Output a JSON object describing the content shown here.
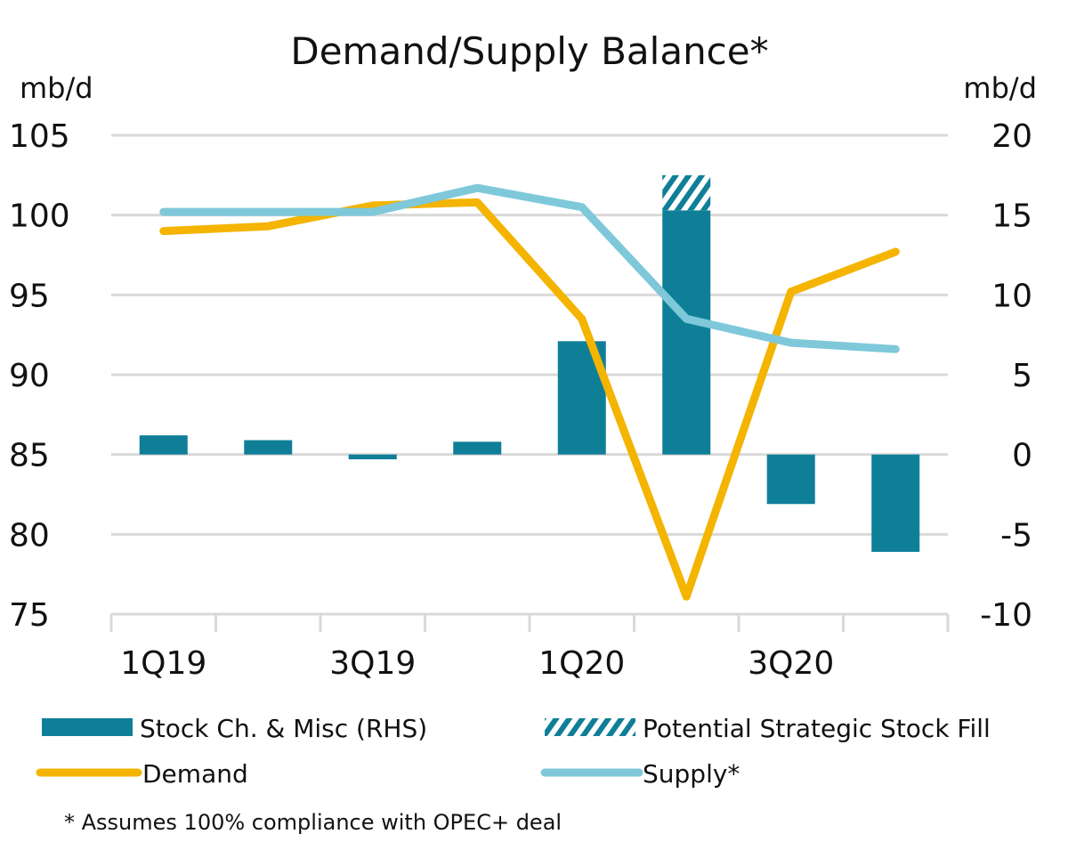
{
  "chart_data": {
    "type": "bar",
    "title": "Demand/Supply Balance*",
    "ylabel_left": "mb/d",
    "ylabel_right": "mb/d",
    "categories": [
      "1Q19",
      "",
      "3Q19",
      "",
      "1Q20",
      "",
      "3Q20",
      ""
    ],
    "ylim_left": [
      75,
      105
    ],
    "yticks_left": [
      105,
      100,
      95,
      90,
      85,
      80,
      75
    ],
    "ylim_right": [
      -10,
      20
    ],
    "yticks_right": [
      20,
      15,
      10,
      5,
      0,
      -5,
      -10
    ],
    "grid": true,
    "legend_placement": "bottom",
    "series": [
      {
        "name": "Stock Ch. & Misc (RHS)",
        "kind": "bar",
        "axis": "right",
        "color": "#0f7f98",
        "values": [
          1.2,
          0.9,
          -0.3,
          0.8,
          7.1,
          15.3,
          -3.1,
          -6.1
        ]
      },
      {
        "name": "Potential Strategic Stock Fill",
        "kind": "bar-stacked-hatched",
        "axis": "right",
        "color": "#0f7f98",
        "values": [
          0,
          0,
          0,
          0,
          0,
          2.2,
          0,
          0
        ]
      },
      {
        "name": "Demand",
        "kind": "line",
        "axis": "left",
        "color": "#f4b400",
        "values": [
          99.0,
          99.3,
          100.6,
          100.8,
          93.5,
          76.1,
          95.2,
          97.7
        ]
      },
      {
        "name": "Supply*",
        "kind": "line",
        "axis": "left",
        "color": "#7ec8da",
        "values": [
          100.2,
          100.2,
          100.2,
          101.7,
          100.5,
          93.5,
          92.0,
          91.6
        ]
      }
    ],
    "footnote": "* Assumes 100% compliance with OPEC+ deal"
  }
}
